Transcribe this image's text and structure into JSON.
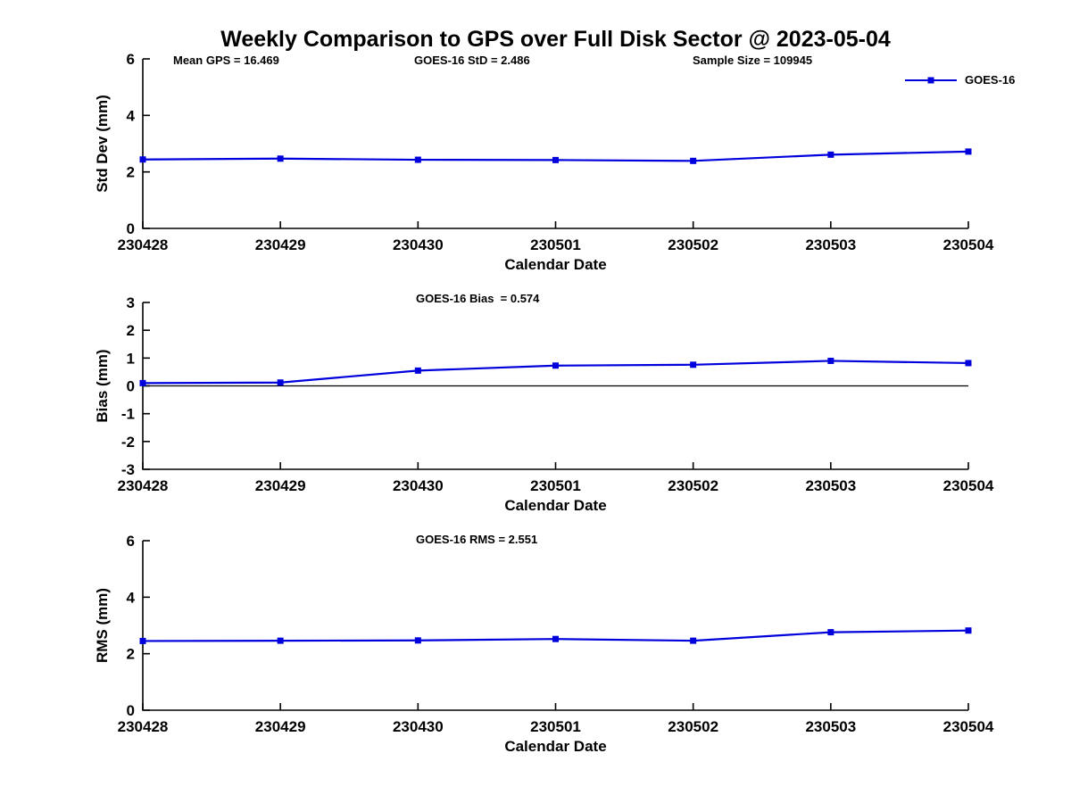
{
  "figure": {
    "title": "Weekly Comparison to GPS over Full Disk Sector @ 2023-05-04",
    "header_annotations": [
      {
        "text": "Mean GPS = 16.469"
      },
      {
        "text": "GOES-16 StD = 2.486"
      },
      {
        "text": "Sample Size = 109945"
      }
    ],
    "legend": {
      "label": "GOES-16",
      "position": "top-right",
      "line_color": "#0000dd"
    }
  },
  "colors": {
    "series_blue": "#0000dd",
    "axis_black": "#000000",
    "background": "#ffffff"
  },
  "chart_data": [
    {
      "type": "line",
      "title": "",
      "annotation": "",
      "categories": [
        "230428",
        "230429",
        "230430",
        "230501",
        "230502",
        "230503",
        "230504"
      ],
      "series": [
        {
          "name": "GOES-16",
          "values": [
            2.44,
            2.47,
            2.43,
            2.42,
            2.39,
            2.61,
            2.72
          ],
          "color": "#0000dd",
          "marker": "square"
        }
      ],
      "xlabel": "Calendar Date",
      "ylabel": "Std Dev (mm)",
      "ylim": [
        0,
        6
      ],
      "yticks": [
        0,
        2,
        4,
        6
      ],
      "zero_line": false,
      "grid": false,
      "legend_position": "top-right"
    },
    {
      "type": "line",
      "title": "",
      "annotation": "GOES-16 Bias  = 0.574",
      "categories": [
        "230428",
        "230429",
        "230430",
        "230501",
        "230502",
        "230503",
        "230504"
      ],
      "series": [
        {
          "name": "GOES-16",
          "values": [
            0.1,
            0.12,
            0.55,
            0.73,
            0.76,
            0.9,
            0.82
          ],
          "color": "#0000dd",
          "marker": "square"
        }
      ],
      "xlabel": "Calendar Date",
      "ylabel": "Bias (mm)",
      "ylim": [
        -3,
        3
      ],
      "yticks": [
        -3,
        -2,
        -1,
        0,
        1,
        2,
        3
      ],
      "zero_line": true,
      "grid": false,
      "legend_position": "none"
    },
    {
      "type": "line",
      "title": "",
      "annotation": "GOES-16 RMS = 2.551",
      "categories": [
        "230428",
        "230429",
        "230430",
        "230501",
        "230502",
        "230503",
        "230504"
      ],
      "series": [
        {
          "name": "GOES-16",
          "values": [
            2.45,
            2.46,
            2.47,
            2.52,
            2.46,
            2.76,
            2.82
          ],
          "color": "#0000dd",
          "marker": "square"
        }
      ],
      "xlabel": "Calendar Date",
      "ylabel": "RMS (mm)",
      "ylim": [
        0,
        6
      ],
      "yticks": [
        0,
        2,
        4,
        6
      ],
      "zero_line": false,
      "grid": false,
      "legend_position": "none"
    }
  ]
}
